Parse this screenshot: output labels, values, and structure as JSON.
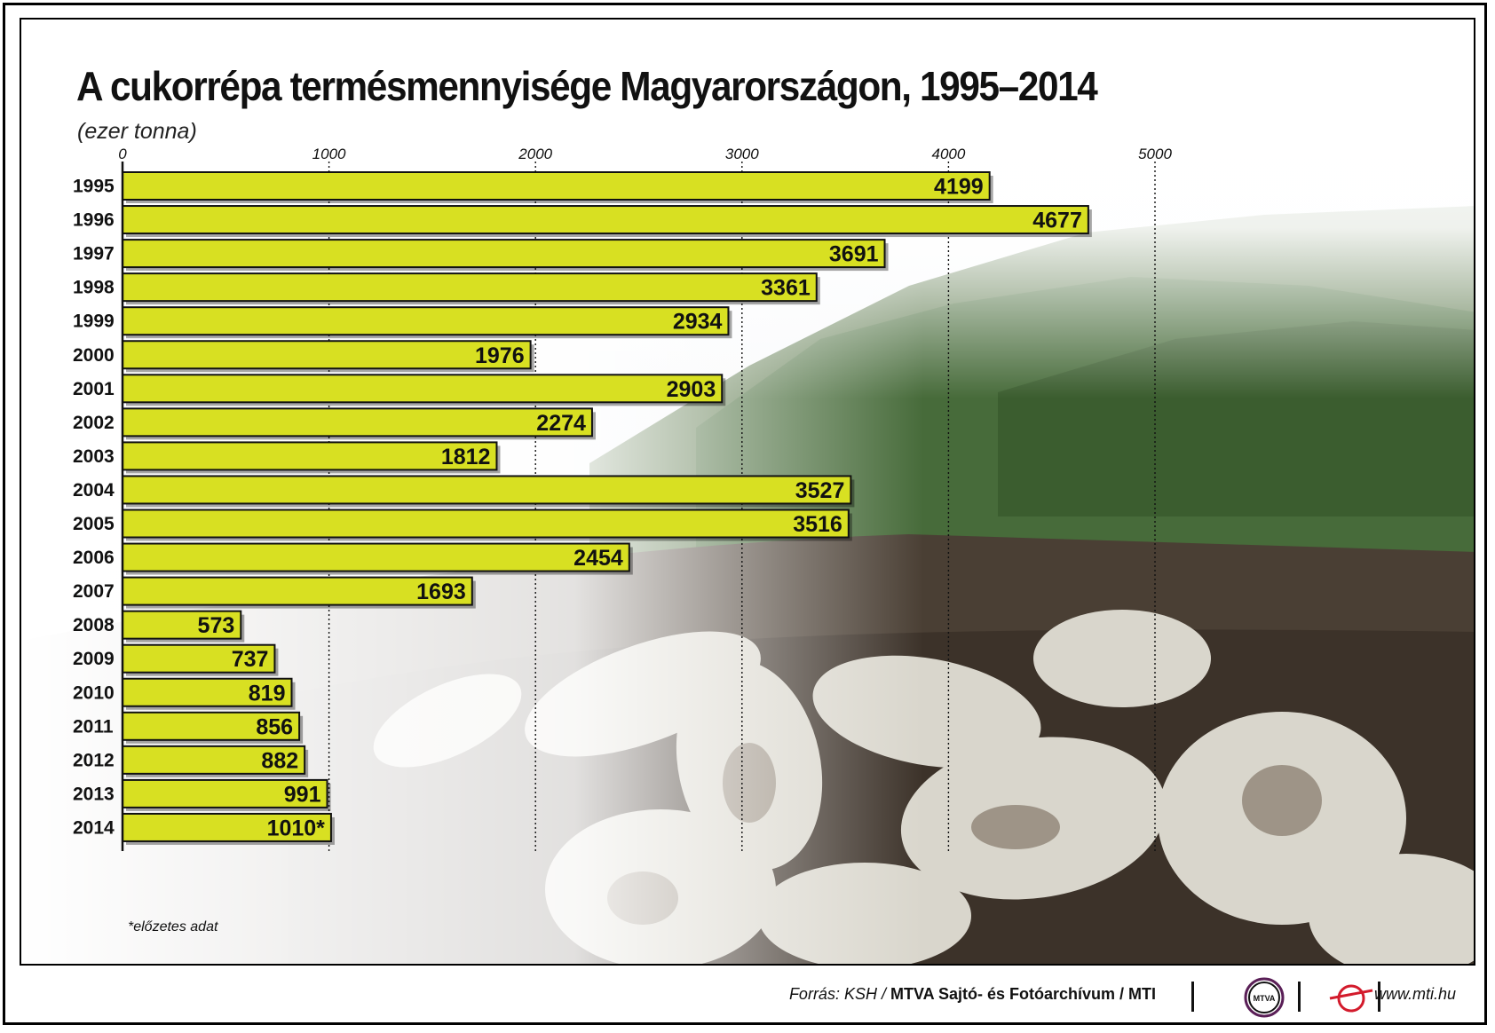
{
  "chart_data": {
    "type": "bar",
    "orientation": "horizontal",
    "title": "A cukorrépa termésmennyisége Magyarországon, 1995–2014",
    "subtitle": "(ezer tonna)",
    "categories": [
      "1995",
      "1996",
      "1997",
      "1998",
      "1999",
      "2000",
      "2001",
      "2002",
      "2003",
      "2004",
      "2005",
      "2006",
      "2007",
      "2008",
      "2009",
      "2010",
      "2011",
      "2012",
      "2013",
      "2014"
    ],
    "values": [
      4199,
      4677,
      3691,
      3361,
      2934,
      1976,
      2903,
      2274,
      1812,
      3527,
      3516,
      2454,
      1693,
      573,
      737,
      819,
      856,
      882,
      991,
      1010
    ],
    "value_labels": [
      "4199",
      "4677",
      "3691",
      "3361",
      "2934",
      "1976",
      "2903",
      "2274",
      "1812",
      "3527",
      "3516",
      "2454",
      "1693",
      "573",
      "737",
      "819",
      "856",
      "882",
      "991",
      "1010*"
    ],
    "xticks": [
      0,
      1000,
      2000,
      3000,
      4000,
      5000
    ],
    "xlim": [
      0,
      5000
    ],
    "grid": true,
    "bar_color": "#d8e022",
    "footnote": "*előzetes adat"
  },
  "footer": {
    "source_prefix": "Forrás: KSH / ",
    "source_main": "MTVA Sajtó- és Fotóarchívum / MTI",
    "mtva_logo_text": "MTVA",
    "website": "www.mti.hu"
  }
}
